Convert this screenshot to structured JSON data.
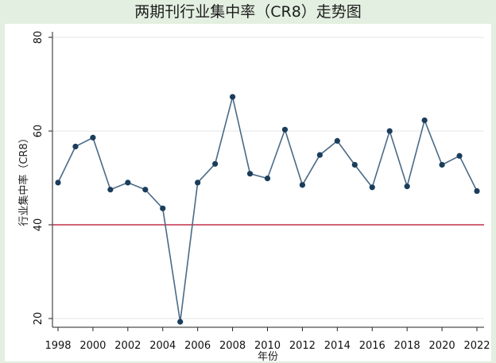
{
  "title": "两期刊行业集中率（CR8）走势图",
  "chart_data": {
    "type": "line",
    "title": "两期刊行业集中率（CR8）走势图",
    "xlabel": "年份",
    "ylabel": "行业集中率（CR8）",
    "x": [
      1998,
      1999,
      2000,
      2001,
      2002,
      2003,
      2004,
      2005,
      2006,
      2007,
      2008,
      2009,
      2010,
      2011,
      2012,
      2013,
      2014,
      2015,
      2016,
      2017,
      2018,
      2019,
      2020,
      2021,
      2022
    ],
    "series": [
      {
        "values": [
          49.0,
          56.7,
          58.6,
          47.5,
          49.0,
          47.5,
          43.5,
          19.3,
          49.0,
          53.0,
          67.3,
          50.9,
          49.9,
          60.3,
          48.5,
          54.9,
          57.9,
          52.8,
          48.0,
          60.0,
          48.2,
          62.3,
          52.8,
          54.7,
          47.2
        ]
      }
    ],
    "xticks": [
      "1998",
      "2000",
      "2002",
      "2004",
      "2006",
      "2008",
      "2010",
      "2012",
      "2014",
      "2016",
      "2018",
      "2020",
      "2022"
    ],
    "yticks": [
      "20",
      "40",
      "60",
      "80"
    ],
    "ylim": [
      19,
      82
    ],
    "xlim": [
      1998,
      2022
    ],
    "reference_line": {
      "y": 40,
      "color": "#c0304a"
    },
    "grid": "horizontal",
    "line_color": "#4a6a86",
    "marker_color": "#1b3d5c"
  }
}
